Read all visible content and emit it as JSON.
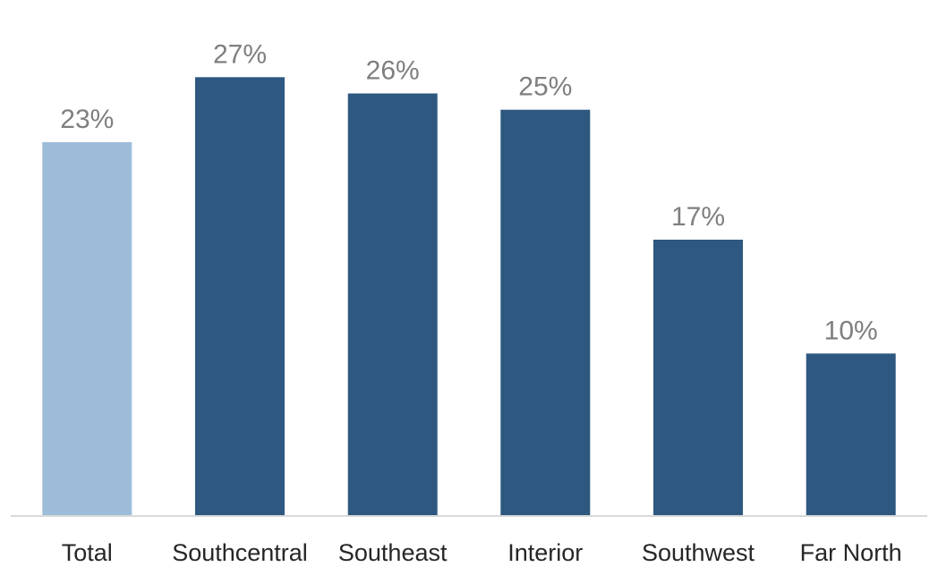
{
  "chart_data": {
    "type": "bar",
    "title": "",
    "xlabel": "",
    "ylabel": "",
    "categories": [
      "Total",
      "Southcentral",
      "Southeast",
      "Interior",
      "Southwest",
      "Far North"
    ],
    "values": [
      23,
      27,
      26,
      25,
      17,
      10
    ],
    "value_labels": [
      "23%",
      "27%",
      "26%",
      "25%",
      "17%",
      "10%"
    ],
    "unit": "%",
    "ylim": [
      0,
      32
    ],
    "grid": false,
    "legend": "none",
    "colors": {
      "highlight": "#9dbcda",
      "default": "#2e5880",
      "axis": "#d9d9d9",
      "value_label": "#7f7f7f",
      "category_label": "#262626"
    },
    "highlight_index": 0
  }
}
